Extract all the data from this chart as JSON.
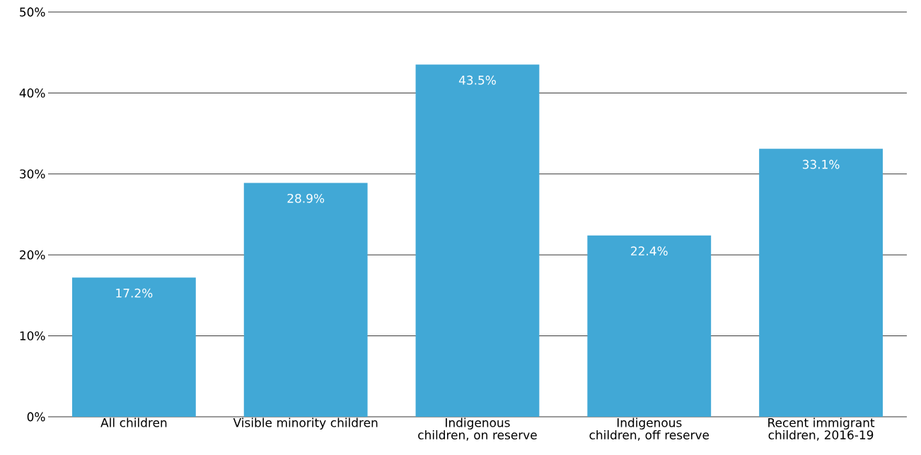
{
  "chart_data": {
    "type": "bar",
    "categories": [
      "All children",
      "Visible minority children",
      "Indigenous children, on reserve",
      "Indigenous children, off reserve",
      "Recent immigrant children, 2016-19"
    ],
    "values": [
      17.2,
      28.9,
      43.5,
      22.4,
      33.1
    ],
    "value_labels": [
      "17.2%",
      "28.9%",
      "43.5%",
      "22.4%",
      "33.1%"
    ],
    "color": "#41a8d6",
    "ylim": [
      0,
      50
    ],
    "yticks": [
      {
        "value": 0,
        "label": "0%"
      },
      {
        "value": 10,
        "label": "10%"
      },
      {
        "value": 20,
        "label": "20%"
      },
      {
        "value": 30,
        "label": "30%"
      },
      {
        "value": 40,
        "label": "40%"
      },
      {
        "value": 50,
        "label": "50%"
      }
    ],
    "grid": "y"
  }
}
